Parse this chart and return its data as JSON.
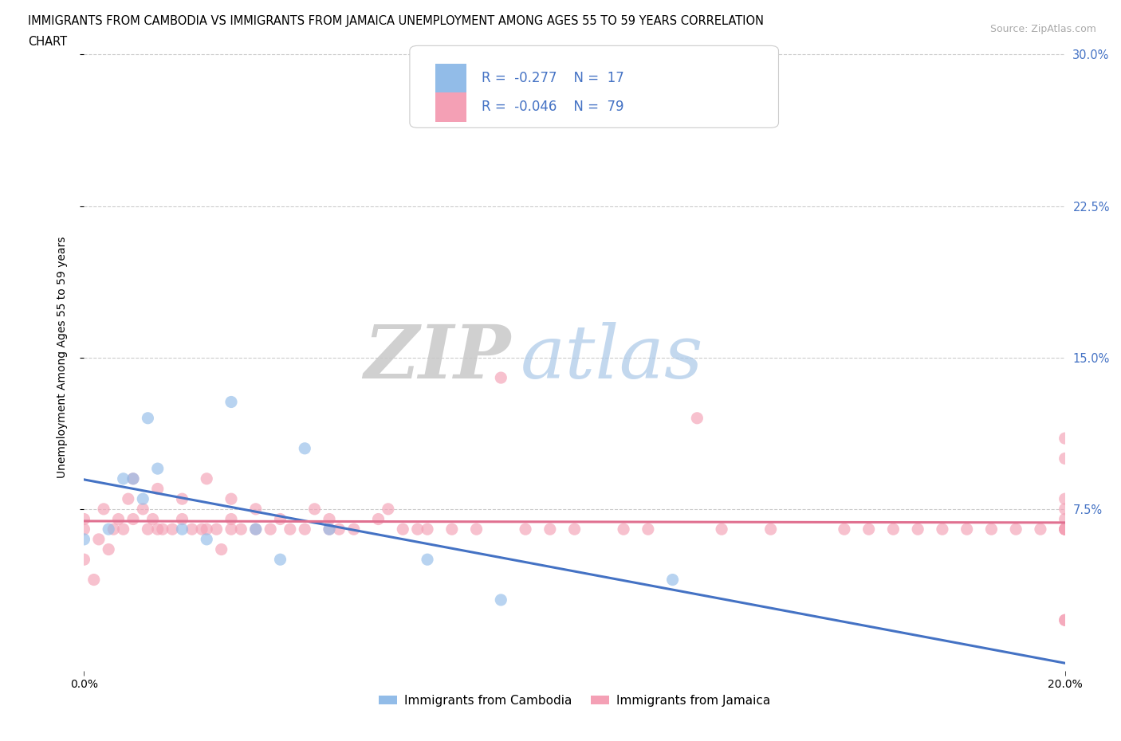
{
  "title_line1": "IMMIGRANTS FROM CAMBODIA VS IMMIGRANTS FROM JAMAICA UNEMPLOYMENT AMONG AGES 55 TO 59 YEARS CORRELATION",
  "title_line2": "CHART",
  "source_text": "Source: ZipAtlas.com",
  "ylabel": "Unemployment Among Ages 55 to 59 years",
  "xlim": [
    0.0,
    0.2
  ],
  "ylim": [
    -0.005,
    0.305
  ],
  "ytick_values": [
    0.075,
    0.15,
    0.225,
    0.3
  ],
  "ytick_labels": [
    "7.5%",
    "15.0%",
    "22.5%",
    "30.0%"
  ],
  "xtick_values": [
    0.0,
    0.2
  ],
  "xtick_labels": [
    "0.0%",
    "20.0%"
  ],
  "grid_color": "#cccccc",
  "background_color": "#ffffff",
  "watermark_zip": "ZIP",
  "watermark_atlas": "atlas",
  "cambodia_color": "#92bce8",
  "jamaica_color": "#f4a0b5",
  "trendline_blue": "#4472c4",
  "trendline_pink": "#e07090",
  "tick_color_right": "#4472c4",
  "cambodia_R": -0.277,
  "cambodia_N": 17,
  "jamaica_R": -0.046,
  "jamaica_N": 79,
  "legend_label_cambodia": "Immigrants from Cambodia",
  "legend_label_jamaica": "Immigrants from Jamaica",
  "cambodia_scatter_x": [
    0.0,
    0.005,
    0.008,
    0.01,
    0.012,
    0.013,
    0.015,
    0.02,
    0.025,
    0.03,
    0.035,
    0.04,
    0.045,
    0.05,
    0.07,
    0.085,
    0.12
  ],
  "cambodia_scatter_y": [
    0.06,
    0.065,
    0.09,
    0.09,
    0.08,
    0.12,
    0.095,
    0.065,
    0.06,
    0.128,
    0.065,
    0.05,
    0.105,
    0.065,
    0.05,
    0.03,
    0.04
  ],
  "jamaica_scatter_x": [
    0.0,
    0.0,
    0.0,
    0.002,
    0.003,
    0.004,
    0.005,
    0.006,
    0.007,
    0.008,
    0.009,
    0.01,
    0.01,
    0.012,
    0.013,
    0.014,
    0.015,
    0.015,
    0.016,
    0.018,
    0.02,
    0.02,
    0.022,
    0.024,
    0.025,
    0.025,
    0.027,
    0.028,
    0.03,
    0.03,
    0.03,
    0.032,
    0.035,
    0.035,
    0.038,
    0.04,
    0.042,
    0.045,
    0.047,
    0.05,
    0.05,
    0.052,
    0.055,
    0.06,
    0.062,
    0.065,
    0.068,
    0.07,
    0.075,
    0.08,
    0.085,
    0.09,
    0.095,
    0.1,
    0.11,
    0.115,
    0.125,
    0.13,
    0.14,
    0.155,
    0.16,
    0.165,
    0.17,
    0.175,
    0.18,
    0.185,
    0.19,
    0.195,
    0.2,
    0.2,
    0.2,
    0.2,
    0.2,
    0.2,
    0.2,
    0.2,
    0.2,
    0.2,
    0.2
  ],
  "jamaica_scatter_y": [
    0.065,
    0.07,
    0.05,
    0.04,
    0.06,
    0.075,
    0.055,
    0.065,
    0.07,
    0.065,
    0.08,
    0.07,
    0.09,
    0.075,
    0.065,
    0.07,
    0.065,
    0.085,
    0.065,
    0.065,
    0.07,
    0.08,
    0.065,
    0.065,
    0.065,
    0.09,
    0.065,
    0.055,
    0.065,
    0.07,
    0.08,
    0.065,
    0.065,
    0.075,
    0.065,
    0.07,
    0.065,
    0.065,
    0.075,
    0.065,
    0.07,
    0.065,
    0.065,
    0.07,
    0.075,
    0.065,
    0.065,
    0.065,
    0.065,
    0.065,
    0.14,
    0.065,
    0.065,
    0.065,
    0.065,
    0.065,
    0.12,
    0.065,
    0.065,
    0.065,
    0.065,
    0.065,
    0.065,
    0.065,
    0.065,
    0.065,
    0.065,
    0.065,
    0.065,
    0.07,
    0.075,
    0.08,
    0.1,
    0.11,
    0.065,
    0.065,
    0.065,
    0.02,
    0.02
  ]
}
